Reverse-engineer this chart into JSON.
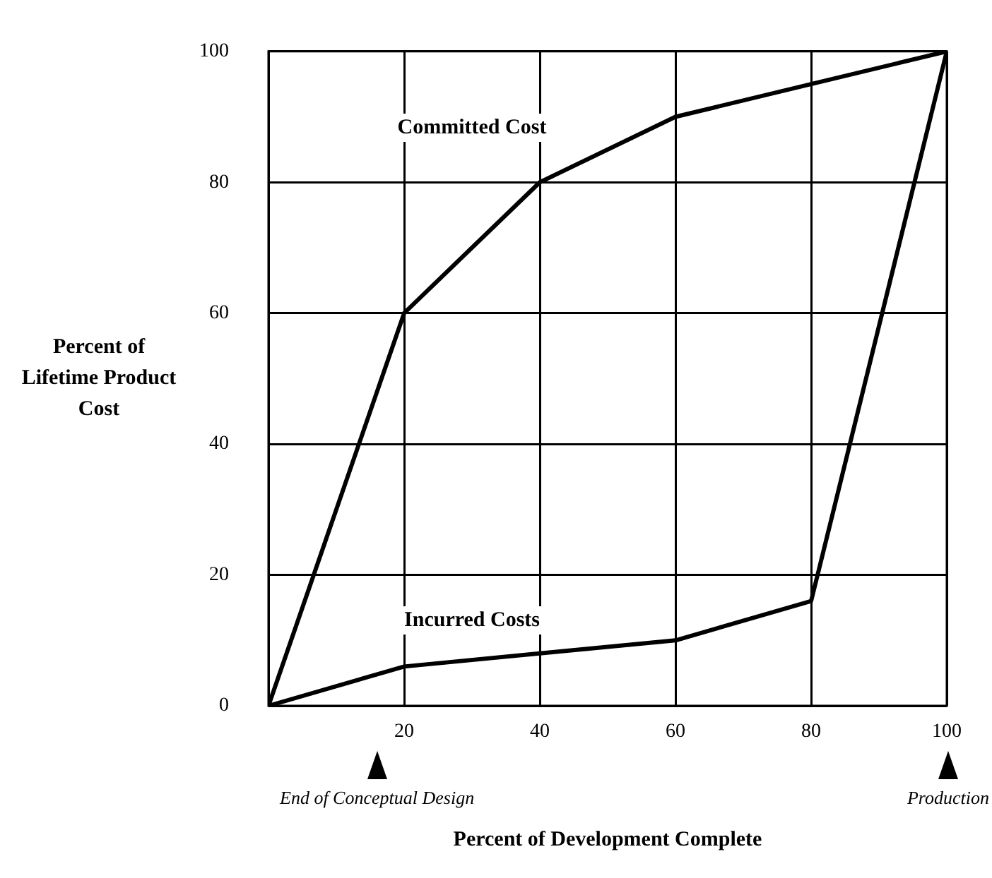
{
  "chart_data": {
    "type": "line",
    "xlabel": "Percent of Development Complete",
    "ylabel": "Percent of\nLifetime Product\nCost",
    "x": [
      0,
      20,
      40,
      60,
      80,
      100
    ],
    "series": [
      {
        "name": "Committed Cost",
        "color": "#000000",
        "values": [
          0,
          60,
          80,
          90,
          95,
          100
        ]
      },
      {
        "name": "Incurred Costs",
        "color": "#000000",
        "values": [
          0,
          6,
          8,
          10,
          16,
          100
        ]
      }
    ],
    "xlim": [
      0,
      100
    ],
    "xticks": [
      {
        "value": 0,
        "label": null
      },
      20,
      40,
      60,
      80,
      100
    ],
    "ylim": [
      0,
      100
    ],
    "yticks": [
      0,
      20,
      40,
      60,
      80,
      100
    ],
    "grid": true,
    "legend": false,
    "marker": "none",
    "line_style": "solid",
    "annotations": [
      "End of Conceptual Design",
      "Production"
    ]
  }
}
